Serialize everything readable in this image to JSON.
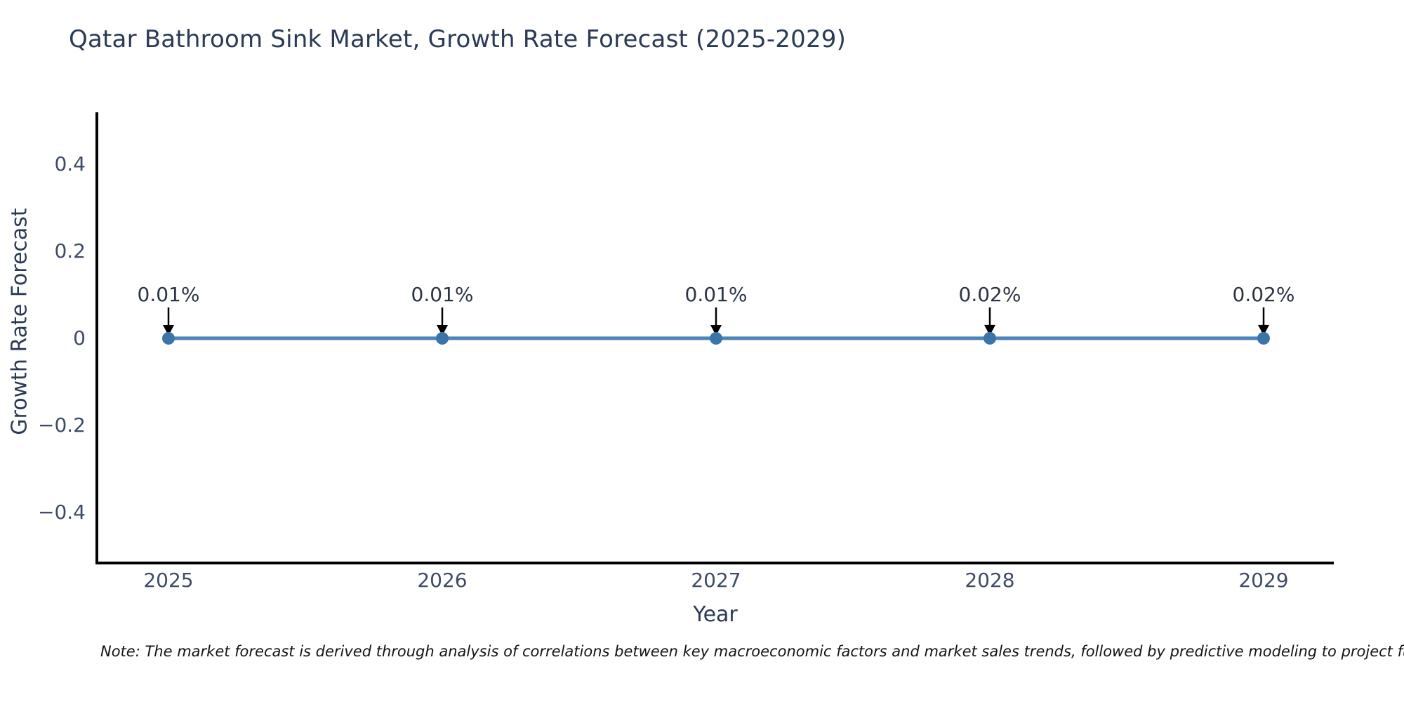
{
  "title": "Qatar Bathroom Sink Market, Growth Rate Forecast (2025-2029)",
  "note": "Note: The market forecast is derived through analysis of correlations between key macroeconomic factors and market sales trends, followed by predictive modeling to project future sales.",
  "colors": {
    "background": "#ffffff",
    "line": "#4d85b8",
    "marker": "#3a74a8",
    "axis": "#000000",
    "arrow": "#000000",
    "title_text": "#2b3a55",
    "tick_text": "#3f4c66",
    "annotation_text": "#2b3446"
  },
  "chart_data": {
    "type": "line",
    "title": "Qatar Bathroom Sink Market, Growth Rate Forecast (2025-2029)",
    "xlabel": "Year",
    "ylabel": "Growth Rate Forecast",
    "categories": [
      "2025",
      "2026",
      "2027",
      "2028",
      "2029"
    ],
    "series": [
      {
        "name": "Growth Rate Forecast",
        "values": [
          0.0001,
          0.0001,
          0.0001,
          0.0002,
          0.0002
        ],
        "point_labels": [
          "0.01%",
          "0.01%",
          "0.01%",
          "0.02%",
          "0.02%"
        ]
      }
    ],
    "ytick_values": [
      0.4,
      0.2,
      0,
      -0.2,
      -0.4
    ],
    "ytick_labels": [
      "0.4",
      "0.2",
      "0",
      "−0.2",
      "−0.4"
    ],
    "ylim": [
      -0.52,
      0.52
    ],
    "grid": false,
    "legend_position": "none",
    "annotations_style": "value label above point with downward arrow"
  }
}
